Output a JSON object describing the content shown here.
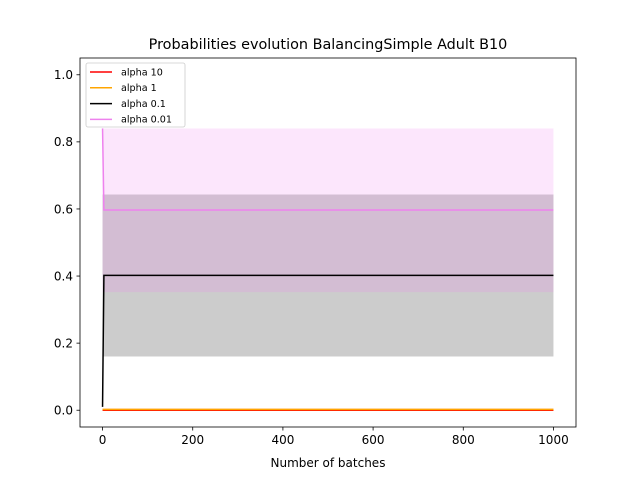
{
  "chart_data": {
    "type": "line",
    "title": "Probabilities evolution BalancingSimple Adult B10",
    "xlabel": "Number of batches",
    "ylabel": "",
    "xlim": [
      -50,
      1050
    ],
    "ylim": [
      -0.05,
      1.05
    ],
    "xticks": [
      0,
      200,
      400,
      600,
      800,
      1000
    ],
    "xtick_labels": [
      "0",
      "200",
      "400",
      "600",
      "800",
      "1000"
    ],
    "yticks": [
      0.0,
      0.2,
      0.4,
      0.6,
      0.8,
      1.0
    ],
    "ytick_labels": [
      "0.0",
      "0.2",
      "0.4",
      "0.6",
      "0.8",
      "1.0"
    ],
    "grid": false,
    "legend_position": "upper-left",
    "series": [
      {
        "name": "alpha 10",
        "color": "#ff0000",
        "x": [
          0,
          3,
          1000
        ],
        "y": [
          0.0,
          0.0,
          0.0
        ],
        "band_lower": [
          0.0,
          0.0,
          0.0
        ],
        "band_upper": [
          0.005,
          0.005,
          0.005
        ]
      },
      {
        "name": "alpha 1",
        "color": "#ffa500",
        "x": [
          0,
          3,
          1000
        ],
        "y": [
          0.002,
          0.002,
          0.002
        ],
        "band_lower": [
          0.0,
          0.0,
          0.0
        ],
        "band_upper": [
          0.006,
          0.006,
          0.006
        ]
      },
      {
        "name": "alpha 0.1",
        "color": "#000000",
        "x": [
          0,
          3,
          1000
        ],
        "y": [
          0.01,
          0.402,
          0.402
        ],
        "band_lower": [
          0.16,
          0.16,
          0.16
        ],
        "band_upper": [
          0.643,
          0.643,
          0.643
        ]
      },
      {
        "name": "alpha 0.01",
        "color": "#ee82ee",
        "x": [
          0,
          3,
          1000
        ],
        "y": [
          0.84,
          0.597,
          0.597
        ],
        "band_lower": [
          0.352,
          0.352,
          0.352
        ],
        "band_upper": [
          0.84,
          0.84,
          0.84
        ]
      }
    ]
  }
}
